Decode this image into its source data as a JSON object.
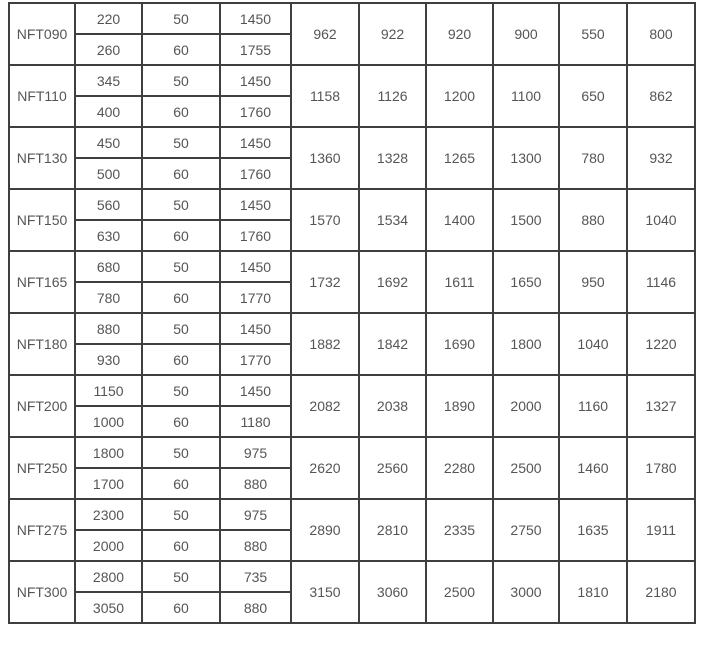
{
  "rows": [
    {
      "model": "NFT090",
      "sub": [
        [
          "220",
          "50",
          "1450"
        ],
        [
          "260",
          "60",
          "1755"
        ]
      ],
      "values": [
        "962",
        "922",
        "920",
        "900",
        "550",
        "800"
      ]
    },
    {
      "model": "NFT110",
      "sub": [
        [
          "345",
          "50",
          "1450"
        ],
        [
          "400",
          "60",
          "1760"
        ]
      ],
      "values": [
        "1158",
        "1126",
        "1200",
        "1100",
        "650",
        "862"
      ]
    },
    {
      "model": "NFT130",
      "sub": [
        [
          "450",
          "50",
          "1450"
        ],
        [
          "500",
          "60",
          "1760"
        ]
      ],
      "values": [
        "1360",
        "1328",
        "1265",
        "1300",
        "780",
        "932"
      ]
    },
    {
      "model": "NFT150",
      "sub": [
        [
          "560",
          "50",
          "1450"
        ],
        [
          "630",
          "60",
          "1760"
        ]
      ],
      "values": [
        "1570",
        "1534",
        "1400",
        "1500",
        "880",
        "1040"
      ]
    },
    {
      "model": "NFT165",
      "sub": [
        [
          "680",
          "50",
          "1450"
        ],
        [
          "780",
          "60",
          "1770"
        ]
      ],
      "values": [
        "1732",
        "1692",
        "1611",
        "1650",
        "950",
        "1146"
      ]
    },
    {
      "model": "NFT180",
      "sub": [
        [
          "880",
          "50",
          "1450"
        ],
        [
          "930",
          "60",
          "1770"
        ]
      ],
      "values": [
        "1882",
        "1842",
        "1690",
        "1800",
        "1040",
        "1220"
      ]
    },
    {
      "model": "NFT200",
      "sub": [
        [
          "1150",
          "50",
          "1450"
        ],
        [
          "1000",
          "60",
          "1180"
        ]
      ],
      "values": [
        "2082",
        "2038",
        "1890",
        "2000",
        "1160",
        "1327"
      ]
    },
    {
      "model": "NFT250",
      "sub": [
        [
          "1800",
          "50",
          "975"
        ],
        [
          "1700",
          "60",
          "880"
        ]
      ],
      "values": [
        "2620",
        "2560",
        "2280",
        "2500",
        "1460",
        "1780"
      ]
    },
    {
      "model": "NFT275",
      "sub": [
        [
          "2300",
          "50",
          "975"
        ],
        [
          "2000",
          "60",
          "880"
        ]
      ],
      "values": [
        "2890",
        "2810",
        "2335",
        "2750",
        "1635",
        "1911"
      ]
    },
    {
      "model": "NFT300",
      "sub": [
        [
          "2800",
          "50",
          "735"
        ],
        [
          "3050",
          "60",
          "880"
        ]
      ],
      "values": [
        "3150",
        "3060",
        "2500",
        "3000",
        "1810",
        "2180"
      ]
    }
  ]
}
